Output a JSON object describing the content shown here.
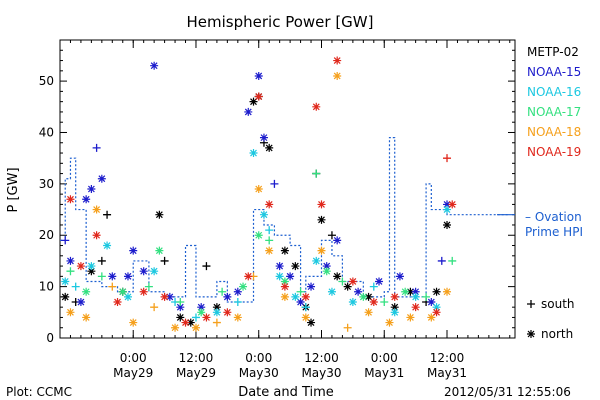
{
  "chart_data": {
    "type": "scatter",
    "title": "Hemispheric Power [GW]",
    "ylabel": "P [GW]",
    "xlabel": "Date and Time",
    "ylim": [
      0,
      58
    ],
    "yticks": [
      0,
      10,
      20,
      30,
      40,
      50
    ],
    "xlim": [
      "2012-05-28T10:00",
      "2012-06-01T01:00"
    ],
    "x_ticks": [
      {
        "time": "2012-05-29T00:00",
        "line1": "0:00",
        "line2": "May29"
      },
      {
        "time": "2012-05-29T12:00",
        "line1": "12:00",
        "line2": "May29"
      },
      {
        "time": "2012-05-30T00:00",
        "line1": "0:00",
        "line2": "May30"
      },
      {
        "time": "2012-05-30T12:00",
        "line1": "12:00",
        "line2": "May30"
      },
      {
        "time": "2012-05-31T00:00",
        "line1": "0:00",
        "line2": "May31"
      },
      {
        "time": "2012-05-31T12:00",
        "line1": "12:00",
        "line2": "May31"
      }
    ],
    "legend": {
      "position": "right"
    },
    "marker_legend": [
      {
        "symbol": "+",
        "label": "south"
      },
      {
        "symbol": "*",
        "label": "north"
      }
    ],
    "series": [
      {
        "name": "METP-02",
        "color": "#000000",
        "points": [
          [
            "2012-05-28T11:00",
            8,
            "north"
          ],
          [
            "2012-05-28T13:00",
            7,
            "south"
          ],
          [
            "2012-05-28T16:00",
            13,
            "north"
          ],
          [
            "2012-05-28T18:00",
            15,
            "south"
          ],
          [
            "2012-05-28T19:00",
            24,
            "south"
          ],
          [
            "2012-05-28T22:00",
            9,
            "north"
          ],
          [
            "2012-05-29T05:00",
            24,
            "north"
          ],
          [
            "2012-05-29T06:00",
            15,
            "south"
          ],
          [
            "2012-05-29T09:00",
            4,
            "north"
          ],
          [
            "2012-05-29T11:00",
            3,
            "north"
          ],
          [
            "2012-05-29T14:00",
            14,
            "south"
          ],
          [
            "2012-05-29T16:00",
            6,
            "north"
          ],
          [
            "2012-05-29T23:00",
            46,
            "north"
          ],
          [
            "2012-05-30T00:00",
            47,
            "north"
          ],
          [
            "2012-05-30T01:00",
            38,
            "south"
          ],
          [
            "2012-05-30T02:00",
            37,
            "north"
          ],
          [
            "2012-05-30T05:00",
            17,
            "north"
          ],
          [
            "2012-05-30T07:00",
            14,
            "north"
          ],
          [
            "2012-05-30T09:00",
            6,
            "north"
          ],
          [
            "2012-05-30T10:00",
            3,
            "north"
          ],
          [
            "2012-05-30T11:00",
            32,
            "south"
          ],
          [
            "2012-05-30T12:00",
            23,
            "north"
          ],
          [
            "2012-05-30T14:00",
            20,
            "south"
          ],
          [
            "2012-05-30T15:00",
            12,
            "north"
          ],
          [
            "2012-05-30T17:00",
            10,
            "north"
          ],
          [
            "2012-05-30T21:00",
            8,
            "north"
          ],
          [
            "2012-05-31T02:00",
            6,
            "north"
          ],
          [
            "2012-05-31T05:00",
            9,
            "north"
          ],
          [
            "2012-05-31T08:00",
            7,
            "south"
          ],
          [
            "2012-05-31T10:00",
            9,
            "north"
          ],
          [
            "2012-05-31T12:00",
            22,
            "north"
          ]
        ]
      },
      {
        "name": "NOAA-15",
        "color": "#1c1ccc",
        "points": [
          [
            "2012-05-28T11:00",
            19,
            "south"
          ],
          [
            "2012-05-28T12:00",
            15,
            "north"
          ],
          [
            "2012-05-28T14:00",
            7,
            "north"
          ],
          [
            "2012-05-28T15:00",
            27,
            "north"
          ],
          [
            "2012-05-28T16:00",
            29,
            "north"
          ],
          [
            "2012-05-28T17:00",
            37,
            "south"
          ],
          [
            "2012-05-28T18:00",
            31,
            "north"
          ],
          [
            "2012-05-28T20:00",
            12,
            "north"
          ],
          [
            "2012-05-28T23:00",
            12,
            "north"
          ],
          [
            "2012-05-29T00:00",
            17,
            "north"
          ],
          [
            "2012-05-29T02:00",
            13,
            "north"
          ],
          [
            "2012-05-29T04:00",
            53,
            "north"
          ],
          [
            "2012-05-29T07:00",
            8,
            "north"
          ],
          [
            "2012-05-29T09:00",
            6,
            "north"
          ],
          [
            "2012-05-29T13:00",
            6,
            "north"
          ],
          [
            "2012-05-29T18:00",
            8,
            "north"
          ],
          [
            "2012-05-29T20:00",
            9,
            "north"
          ],
          [
            "2012-05-29T22:00",
            44,
            "north"
          ],
          [
            "2012-05-30T00:00",
            51,
            "north"
          ],
          [
            "2012-05-30T01:00",
            39,
            "north"
          ],
          [
            "2012-05-30T03:00",
            30,
            "south"
          ],
          [
            "2012-05-30T04:00",
            14,
            "north"
          ],
          [
            "2012-05-30T06:00",
            12,
            "north"
          ],
          [
            "2012-05-30T08:00",
            7,
            "north"
          ],
          [
            "2012-05-30T10:00",
            10,
            "north"
          ],
          [
            "2012-05-30T13:00",
            14,
            "north"
          ],
          [
            "2012-05-30T15:00",
            19,
            "north"
          ],
          [
            "2012-05-30T19:00",
            9,
            "north"
          ],
          [
            "2012-05-30T23:00",
            11,
            "north"
          ],
          [
            "2012-05-31T03:00",
            12,
            "north"
          ],
          [
            "2012-05-31T06:00",
            9,
            "north"
          ],
          [
            "2012-05-31T09:00",
            7,
            "north"
          ],
          [
            "2012-05-31T11:00",
            15,
            "south"
          ],
          [
            "2012-05-31T12:00",
            26,
            "north"
          ]
        ]
      },
      {
        "name": "NOAA-16",
        "color": "#1cc8e0",
        "points": [
          [
            "2012-05-28T11:00",
            11,
            "north"
          ],
          [
            "2012-05-28T13:00",
            10,
            "south"
          ],
          [
            "2012-05-28T16:00",
            14,
            "north"
          ],
          [
            "2012-05-28T19:00",
            18,
            "north"
          ],
          [
            "2012-05-28T23:00",
            8,
            "north"
          ],
          [
            "2012-05-29T04:00",
            13,
            "north"
          ],
          [
            "2012-05-29T08:00",
            7,
            "south"
          ],
          [
            "2012-05-29T12:00",
            4,
            "south"
          ],
          [
            "2012-05-29T16:00",
            5,
            "north"
          ],
          [
            "2012-05-29T20:00",
            7,
            "south"
          ],
          [
            "2012-05-29T23:00",
            36,
            "north"
          ],
          [
            "2012-05-30T01:00",
            24,
            "north"
          ],
          [
            "2012-05-30T02:00",
            21,
            "south"
          ],
          [
            "2012-05-30T04:00",
            12,
            "north"
          ],
          [
            "2012-05-30T07:00",
            8,
            "north"
          ],
          [
            "2012-05-30T09:00",
            6,
            "south"
          ],
          [
            "2012-05-30T11:00",
            15,
            "north"
          ],
          [
            "2012-05-30T14:00",
            9,
            "north"
          ],
          [
            "2012-05-30T18:00",
            7,
            "north"
          ],
          [
            "2012-05-30T22:00",
            10,
            "south"
          ],
          [
            "2012-05-31T02:00",
            5,
            "north"
          ],
          [
            "2012-05-31T06:00",
            8,
            "north"
          ],
          [
            "2012-05-31T10:00",
            6,
            "north"
          ],
          [
            "2012-05-31T12:00",
            25,
            "north"
          ]
        ]
      },
      {
        "name": "NOAA-17",
        "color": "#33e080",
        "points": [
          [
            "2012-05-28T12:00",
            13,
            "south"
          ],
          [
            "2012-05-28T15:00",
            9,
            "north"
          ],
          [
            "2012-05-28T18:00",
            12,
            "south"
          ],
          [
            "2012-05-28T22:00",
            9,
            "north"
          ],
          [
            "2012-05-29T03:00",
            10,
            "south"
          ],
          [
            "2012-05-29T05:00",
            17,
            "north"
          ],
          [
            "2012-05-29T09:00",
            7,
            "south"
          ],
          [
            "2012-05-29T13:00",
            5,
            "north"
          ],
          [
            "2012-05-29T17:00",
            9,
            "south"
          ],
          [
            "2012-05-29T21:00",
            10,
            "north"
          ],
          [
            "2012-05-30T00:00",
            20,
            "north"
          ],
          [
            "2012-05-30T02:00",
            19,
            "south"
          ],
          [
            "2012-05-30T05:00",
            11,
            "north"
          ],
          [
            "2012-05-30T08:00",
            9,
            "south"
          ],
          [
            "2012-05-30T11:00",
            32,
            "south"
          ],
          [
            "2012-05-30T13:00",
            13,
            "north"
          ],
          [
            "2012-05-30T16:00",
            11,
            "south"
          ],
          [
            "2012-05-30T20:00",
            8,
            "north"
          ],
          [
            "2012-05-31T00:00",
            7,
            "south"
          ],
          [
            "2012-05-31T04:00",
            9,
            "north"
          ],
          [
            "2012-05-31T08:00",
            8,
            "south"
          ],
          [
            "2012-05-31T13:00",
            15,
            "south"
          ]
        ]
      },
      {
        "name": "NOAA-18",
        "color": "#f5a01c",
        "points": [
          [
            "2012-05-28T12:00",
            5,
            "north"
          ],
          [
            "2012-05-28T15:00",
            4,
            "north"
          ],
          [
            "2012-05-28T17:00",
            25,
            "north"
          ],
          [
            "2012-05-28T20:00",
            10,
            "south"
          ],
          [
            "2012-05-29T00:00",
            3,
            "north"
          ],
          [
            "2012-05-29T04:00",
            6,
            "south"
          ],
          [
            "2012-05-29T08:00",
            2,
            "north"
          ],
          [
            "2012-05-29T12:00",
            2,
            "north"
          ],
          [
            "2012-05-29T16:00",
            3,
            "south"
          ],
          [
            "2012-05-29T20:00",
            4,
            "north"
          ],
          [
            "2012-05-29T23:00",
            12,
            "south"
          ],
          [
            "2012-05-30T00:00",
            29,
            "north"
          ],
          [
            "2012-05-30T02:00",
            17,
            "north"
          ],
          [
            "2012-05-30T05:00",
            8,
            "north"
          ],
          [
            "2012-05-30T09:00",
            4,
            "north"
          ],
          [
            "2012-05-30T12:00",
            17,
            "north"
          ],
          [
            "2012-05-30T15:00",
            51,
            "north"
          ],
          [
            "2012-05-30T17:00",
            2,
            "south"
          ],
          [
            "2012-05-30T21:00",
            5,
            "north"
          ],
          [
            "2012-05-31T01:00",
            3,
            "north"
          ],
          [
            "2012-05-31T05:00",
            4,
            "north"
          ],
          [
            "2012-05-31T09:00",
            4,
            "north"
          ],
          [
            "2012-05-31T12:00",
            9,
            "north"
          ]
        ]
      },
      {
        "name": "NOAA-19",
        "color": "#e0281c",
        "points": [
          [
            "2012-05-28T12:00",
            27,
            "north"
          ],
          [
            "2012-05-28T14:00",
            14,
            "north"
          ],
          [
            "2012-05-28T17:00",
            20,
            "north"
          ],
          [
            "2012-05-28T21:00",
            7,
            "north"
          ],
          [
            "2012-05-29T02:00",
            9,
            "north"
          ],
          [
            "2012-05-29T06:00",
            8,
            "north"
          ],
          [
            "2012-05-29T10:00",
            3,
            "north"
          ],
          [
            "2012-05-29T14:00",
            4,
            "north"
          ],
          [
            "2012-05-29T18:00",
            5,
            "north"
          ],
          [
            "2012-05-29T22:00",
            12,
            "north"
          ],
          [
            "2012-05-30T00:00",
            47,
            "north"
          ],
          [
            "2012-05-30T02:00",
            26,
            "north"
          ],
          [
            "2012-05-30T05:00",
            10,
            "north"
          ],
          [
            "2012-05-30T09:00",
            8,
            "north"
          ],
          [
            "2012-05-30T11:00",
            45,
            "north"
          ],
          [
            "2012-05-30T12:00",
            26,
            "north"
          ],
          [
            "2012-05-30T15:00",
            54,
            "north"
          ],
          [
            "2012-05-30T18:00",
            11,
            "north"
          ],
          [
            "2012-05-30T22:00",
            7,
            "north"
          ],
          [
            "2012-05-31T02:00",
            8,
            "north"
          ],
          [
            "2012-05-31T06:00",
            6,
            "north"
          ],
          [
            "2012-05-31T10:00",
            5,
            "north"
          ],
          [
            "2012-05-31T12:00",
            35,
            "south"
          ],
          [
            "2012-05-31T13:00",
            26,
            "north"
          ]
        ]
      }
    ],
    "ovation": {
      "name": "Ovation Prime HPI",
      "legend_label": "– Ovation",
      "legend_label_line2": "Prime HPI",
      "color": "#1c5fd0",
      "steps": [
        [
          "2012-05-28T10:00",
          19
        ],
        [
          "2012-05-28T11:00",
          31
        ],
        [
          "2012-05-28T12:00",
          35
        ],
        [
          "2012-05-28T13:00",
          25
        ],
        [
          "2012-05-28T15:00",
          11
        ],
        [
          "2012-05-28T18:00",
          10
        ],
        [
          "2012-05-28T21:00",
          9
        ],
        [
          "2012-05-29T00:00",
          15
        ],
        [
          "2012-05-29T03:00",
          9
        ],
        [
          "2012-05-29T06:00",
          8
        ],
        [
          "2012-05-29T10:00",
          18
        ],
        [
          "2012-05-29T12:00",
          8
        ],
        [
          "2012-05-29T16:00",
          11
        ],
        [
          "2012-05-29T18:00",
          7
        ],
        [
          "2012-05-29T23:00",
          25
        ],
        [
          "2012-05-30T01:00",
          22
        ],
        [
          "2012-05-30T03:00",
          20
        ],
        [
          "2012-05-30T06:00",
          18
        ],
        [
          "2012-05-30T08:00",
          9
        ],
        [
          "2012-05-30T09:00",
          12
        ],
        [
          "2012-05-30T12:00",
          19
        ],
        [
          "2012-05-30T14:00",
          16
        ],
        [
          "2012-05-30T16:00",
          11
        ],
        [
          "2012-05-30T20:00",
          8
        ],
        [
          "2012-05-31T00:00",
          9
        ],
        [
          "2012-05-31T01:00",
          39
        ],
        [
          "2012-05-31T02:00",
          8
        ],
        [
          "2012-05-31T08:00",
          30
        ],
        [
          "2012-05-31T09:00",
          25
        ],
        [
          "2012-05-31T12:00",
          24
        ],
        [
          "2012-06-01T00:00",
          24
        ]
      ]
    }
  },
  "footer": {
    "plot_source": "Plot: CCMC",
    "timestamp": "2012/05/31 12:55:06"
  }
}
